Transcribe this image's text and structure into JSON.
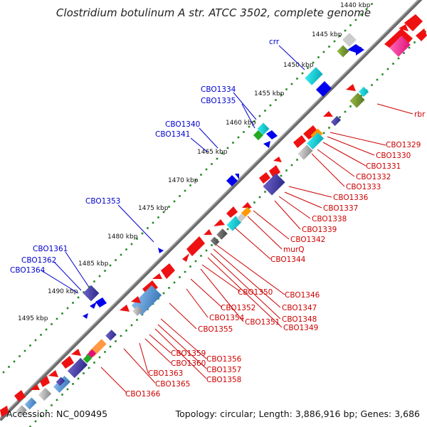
{
  "title": "Clostridium botulinum A str. ATCC 3502, complete genome",
  "footer": {
    "accession": "Accession: NC_009495",
    "summary": "Topology: circular; Length: 3,886,916 bp; Genes: 3,686"
  },
  "ticks": [
    "1440 kbp",
    "1445 kbp",
    "1450 kbp",
    "1455 kbp",
    "1460 kbp",
    "1465 kbp",
    "1470 kbp",
    "1475 kbp",
    "1480 kbp",
    "1485 kbp",
    "1490 kbp",
    "1495 kbp"
  ],
  "blue_labels": [
    "crr",
    "CBO1334",
    "CBO1335",
    "CBO1340",
    "CBO1341",
    "CBO1353",
    "CBO1361",
    "CBO1362",
    "CBO1364"
  ],
  "red_labels": [
    "rbr",
    "CBO1329",
    "CBO1330",
    "CBO1331",
    "CBO1332",
    "CBO1333",
    "CBO1336",
    "CBO1337",
    "CBO1338",
    "CBO1339",
    "CBO1342",
    "murQ",
    "CBO1344",
    "CBO1346",
    "CBO1347",
    "CBO1348",
    "CBO1349",
    "CBO1350",
    "CBO1351",
    "CBO1352",
    "CBO1354",
    "CBO1355",
    "CBO1356",
    "CBO1357",
    "CBO1358",
    "CBO1359",
    "CBO1360",
    "CBO1363",
    "CBO1365",
    "CBO1366"
  ],
  "colors": {
    "backbone": "#666666",
    "tick_dots": "#228822",
    "forward_gene": "#ee1111",
    "reverse_gene": "#1111ee",
    "blue_text": "#0000cc",
    "red_text": "#cc0000"
  }
}
